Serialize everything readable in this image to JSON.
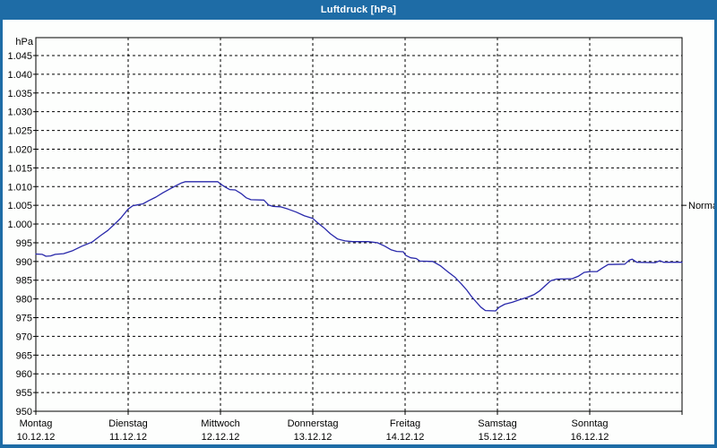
{
  "window": {
    "title": "Luftdruck [hPa]",
    "titlebar_color": "#1E6CA6",
    "border_color": "#1E6CA6",
    "background_color": "#FDFEFD"
  },
  "chart_data": {
    "type": "line",
    "title": "Luftdruck [hPa]",
    "unit_label": "hPa",
    "normal_label": "Normal",
    "normal_value": 1005,
    "line_color": "#2828AA",
    "grid_color": "#000000",
    "text_color": "#000000",
    "grid_style": "dashed",
    "legend_position": "right",
    "ylim": [
      950,
      1045
    ],
    "yticks": [
      {
        "value": 1045,
        "label": "1.045"
      },
      {
        "value": 1040,
        "label": "1.040"
      },
      {
        "value": 1035,
        "label": "1.035"
      },
      {
        "value": 1030,
        "label": "1.030"
      },
      {
        "value": 1025,
        "label": "1.025"
      },
      {
        "value": 1020,
        "label": "1.020"
      },
      {
        "value": 1015,
        "label": "1.015"
      },
      {
        "value": 1010,
        "label": "1.010"
      },
      {
        "value": 1005,
        "label": "1.005"
      },
      {
        "value": 1000,
        "label": "1.000"
      },
      {
        "value": 995,
        "label": "995"
      },
      {
        "value": 990,
        "label": "990"
      },
      {
        "value": 985,
        "label": "985"
      },
      {
        "value": 980,
        "label": "980"
      },
      {
        "value": 975,
        "label": "975"
      },
      {
        "value": 970,
        "label": "970"
      },
      {
        "value": 965,
        "label": "965"
      },
      {
        "value": 960,
        "label": "960"
      },
      {
        "value": 955,
        "label": "955"
      },
      {
        "value": 950,
        "label": "950"
      }
    ],
    "x_days": [
      {
        "name": "Montag",
        "date": "10.12.12"
      },
      {
        "name": "Dienstag",
        "date": "11.12.12"
      },
      {
        "name": "Mittwoch",
        "date": "12.12.12"
      },
      {
        "name": "Donnerstag",
        "date": "13.12.12"
      },
      {
        "name": "Freitag",
        "date": "14.12.12"
      },
      {
        "name": "Samstag",
        "date": "15.12.12"
      },
      {
        "name": "Sonntag",
        "date": "16.12.12"
      }
    ],
    "series": [
      {
        "name": "Luftdruck",
        "x_unit": "days_from_start",
        "y_unit": "hPa",
        "points": [
          [
            0.0,
            992.0
          ],
          [
            0.07,
            991.9
          ],
          [
            0.11,
            991.4
          ],
          [
            0.16,
            991.5
          ],
          [
            0.21,
            991.9
          ],
          [
            0.3,
            992.1
          ],
          [
            0.4,
            992.9
          ],
          [
            0.5,
            994.1
          ],
          [
            0.61,
            995.2
          ],
          [
            0.7,
            996.9
          ],
          [
            0.78,
            998.3
          ],
          [
            0.85,
            999.9
          ],
          [
            0.92,
            1001.6
          ],
          [
            1.0,
            1004.0
          ],
          [
            1.05,
            1004.9
          ],
          [
            1.1,
            1005.1
          ],
          [
            1.16,
            1005.4
          ],
          [
            1.22,
            1006.2
          ],
          [
            1.3,
            1007.2
          ],
          [
            1.38,
            1008.4
          ],
          [
            1.46,
            1009.5
          ],
          [
            1.53,
            1010.4
          ],
          [
            1.58,
            1011.0
          ],
          [
            1.62,
            1011.3
          ],
          [
            1.97,
            1011.3
          ],
          [
            2.0,
            1010.7
          ],
          [
            2.05,
            1009.9
          ],
          [
            2.1,
            1009.2
          ],
          [
            2.16,
            1009.1
          ],
          [
            2.22,
            1008.2
          ],
          [
            2.28,
            1007.0
          ],
          [
            2.33,
            1006.5
          ],
          [
            2.47,
            1006.4
          ],
          [
            2.52,
            1005.1
          ],
          [
            2.57,
            1004.7
          ],
          [
            2.65,
            1004.6
          ],
          [
            2.73,
            1004.0
          ],
          [
            2.82,
            1003.2
          ],
          [
            2.91,
            1002.2
          ],
          [
            3.0,
            1001.5
          ],
          [
            3.05,
            1000.4
          ],
          [
            3.12,
            999.0
          ],
          [
            3.19,
            997.4
          ],
          [
            3.27,
            996.0
          ],
          [
            3.35,
            995.5
          ],
          [
            3.43,
            995.3
          ],
          [
            3.6,
            995.3
          ],
          [
            3.7,
            995.0
          ],
          [
            3.78,
            994.1
          ],
          [
            3.85,
            993.1
          ],
          [
            3.91,
            992.7
          ],
          [
            3.98,
            992.6
          ],
          [
            4.01,
            991.6
          ],
          [
            4.06,
            991.0
          ],
          [
            4.12,
            990.8
          ],
          [
            4.16,
            990.1
          ],
          [
            4.3,
            990.0
          ],
          [
            4.38,
            988.9
          ],
          [
            4.46,
            987.3
          ],
          [
            4.54,
            985.8
          ],
          [
            4.61,
            984.0
          ],
          [
            4.67,
            982.3
          ],
          [
            4.72,
            980.6
          ],
          [
            4.77,
            979.2
          ],
          [
            4.82,
            977.8
          ],
          [
            4.87,
            976.9
          ],
          [
            4.98,
            976.8
          ],
          [
            5.02,
            977.8
          ],
          [
            5.08,
            978.6
          ],
          [
            5.16,
            979.1
          ],
          [
            5.24,
            979.8
          ],
          [
            5.32,
            980.4
          ],
          [
            5.4,
            981.2
          ],
          [
            5.46,
            982.2
          ],
          [
            5.52,
            983.6
          ],
          [
            5.58,
            984.9
          ],
          [
            5.64,
            985.3
          ],
          [
            5.81,
            985.4
          ],
          [
            5.88,
            986.1
          ],
          [
            5.94,
            987.1
          ],
          [
            6.0,
            987.3
          ],
          [
            6.08,
            987.3
          ],
          [
            6.14,
            988.3
          ],
          [
            6.2,
            989.2
          ],
          [
            6.38,
            989.3
          ],
          [
            6.43,
            990.4
          ],
          [
            6.46,
            990.6
          ],
          [
            6.51,
            989.8
          ],
          [
            6.71,
            989.7
          ],
          [
            6.76,
            990.2
          ],
          [
            6.8,
            989.8
          ],
          [
            7.0,
            989.8
          ]
        ]
      }
    ]
  }
}
